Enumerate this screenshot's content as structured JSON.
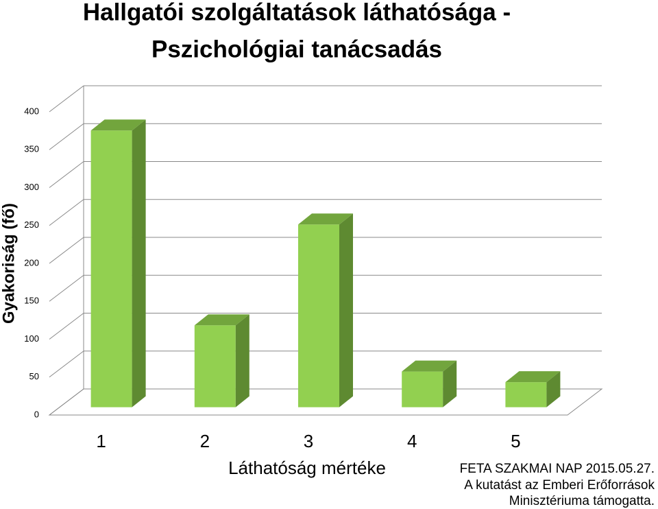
{
  "chart_data": {
    "type": "bar3d",
    "title": [
      "Hallgatói szolgáltatások láthatósága -",
      "Pszichológiai tanácsadás"
    ],
    "y_label": "Gyakoriság (fő)",
    "x_label": "Láthatóság mértéke",
    "categories": [
      "1",
      "2",
      "3",
      "4",
      "5"
    ],
    "values": [
      365,
      108,
      241,
      47,
      33
    ],
    "color": "#92d050",
    "ylim": [
      0,
      400
    ],
    "yticks": [
      0,
      50,
      100,
      150,
      200,
      250,
      300,
      350,
      400
    ],
    "grid": true,
    "annotations": [
      "FETA SZAKMAI NAP 2015.05.27.",
      "A  kutatást az Emberi Erőforrások",
      "Minisztériuma támogatta."
    ]
  }
}
